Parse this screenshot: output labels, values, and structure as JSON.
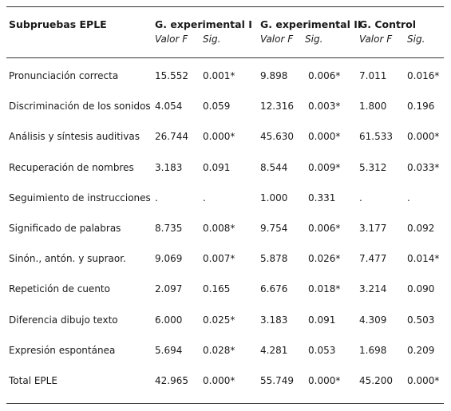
{
  "header": {
    "col0": "Subpruebas EPLE",
    "groups": [
      "G. experimental I",
      "G. experimental II",
      "G. Control"
    ],
    "sub_f": "Valor F",
    "sub_sig": "Sig."
  },
  "rows": [
    {
      "label": "Pronunciación correcta",
      "cells": [
        "15.552",
        "0.001*",
        "9.898",
        "0.006*",
        "7.011",
        "0.016*"
      ]
    },
    {
      "label": "Discriminación de los sonidos",
      "cells": [
        "4.054",
        "0.059",
        "12.316",
        "0.003*",
        "1.800",
        "0.196"
      ]
    },
    {
      "label": "Análisis y síntesis auditivas",
      "cells": [
        "26.744",
        "0.000*",
        "45.630",
        "0.000*",
        "61.533",
        "0.000*"
      ]
    },
    {
      "label": "Recuperación de nombres",
      "cells": [
        "3.183",
        "0.091",
        "8.544",
        "0.009*",
        "5.312",
        "0.033*"
      ]
    },
    {
      "label": "Seguimiento de instrucciones",
      "cells": [
        ".",
        ".",
        "1.000",
        "0.331",
        ".",
        "."
      ]
    },
    {
      "label": "Significado de palabras",
      "cells": [
        "8.735",
        "0.008*",
        "9.754",
        "0.006*",
        "3.177",
        "0.092"
      ]
    },
    {
      "label": "Sinón., antón. y supraor.",
      "cells": [
        "9.069",
        "0.007*",
        "5.878",
        "0.026*",
        "7.477",
        "0.014*"
      ]
    },
    {
      "label": "Repetición de cuento",
      "cells": [
        "2.097",
        "0.165",
        "6.676",
        "0.018*",
        "3.214",
        "0.090"
      ]
    },
    {
      "label": "Diferencia dibujo texto",
      "cells": [
        "6.000",
        "0.025*",
        "3.183",
        "0.091",
        "4.309",
        "0.503"
      ]
    },
    {
      "label": "Expresión espontánea",
      "cells": [
        "5.694",
        "0.028*",
        "4.281",
        "0.053",
        "1.698",
        "0.209"
      ]
    },
    {
      "label": "Total EPLE",
      "cells": [
        "42.965",
        "0.000*",
        "55.749",
        "0.000*",
        "45.200",
        "0.000*"
      ]
    }
  ]
}
